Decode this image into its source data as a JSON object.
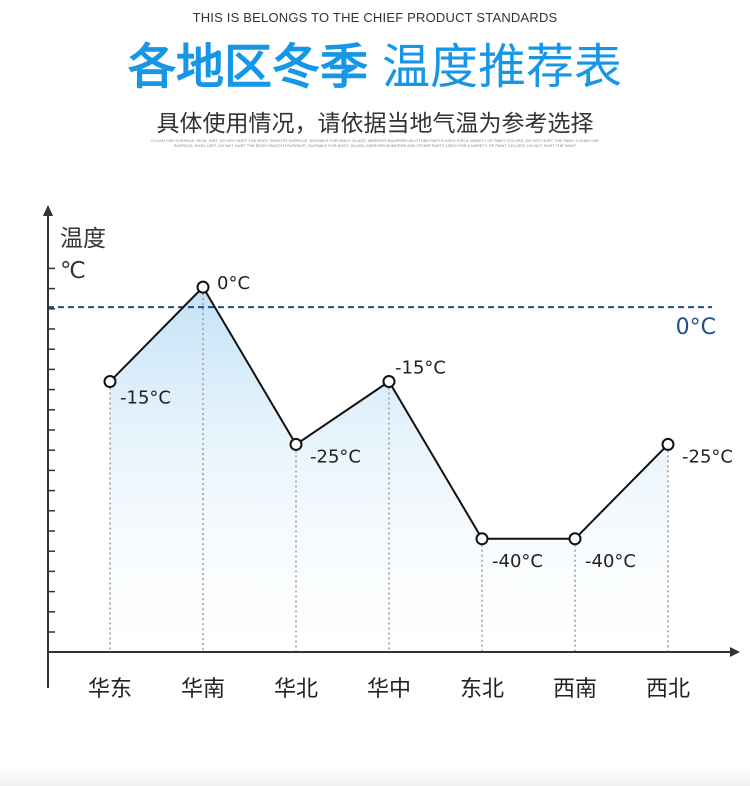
{
  "header": {
    "tagline": "THIS IS BELONGS TO THE CHIEF PRODUCT STANDARDS",
    "title_bold": "各地区冬季",
    "title_light": "温度推荐表",
    "subtitle": "具体使用情况，请依据当地气温为参考选择",
    "fineprint": "CLEAN CAR SURFACE, IRON, DIRT, DO NOT HURT THE BODY SMOOTH SURFACE, SUITABLE FOR BODY, GLASS, MIRRORS BUMPERS AN OTHER PARTS USED FOR A VARIETY OF PAINT COLORS, DO NOT HURT THE PAINT CLEAN CAR SURFACE, IRON, DIRT, DO NOT HURT THE BODY SMOOTH SURFACE, SUITABLE FOR BODY, GLASS, MIRRORS BUMPERS AND OTHER PARTS USED FOR A VARIETY OF PAINT COLORS, DO NOT HURT THE PAINT"
  },
  "colors": {
    "accent": "#1596e6",
    "reference_line": "#1f4e8c",
    "line": "#111111",
    "axis": "#333333",
    "fill": "#bfe0f7"
  },
  "chart_data": {
    "type": "line",
    "ylabel_line1": "温度",
    "ylabel_line2": "℃",
    "categories": [
      "华东",
      "华南",
      "华北",
      "华中",
      "东北",
      "西南",
      "西北"
    ],
    "values": [
      -15,
      0,
      -25,
      -15,
      -40,
      -40,
      -25
    ],
    "data_labels": [
      "-15°C",
      "0°C",
      "-25°C",
      "-15°C",
      "-40°C",
      "-40°C",
      "-25°C"
    ],
    "reference_line": {
      "value": 0,
      "label": "0°C"
    },
    "ylim": [
      -58,
      4
    ],
    "grid": false,
    "fill_under_line": true
  }
}
